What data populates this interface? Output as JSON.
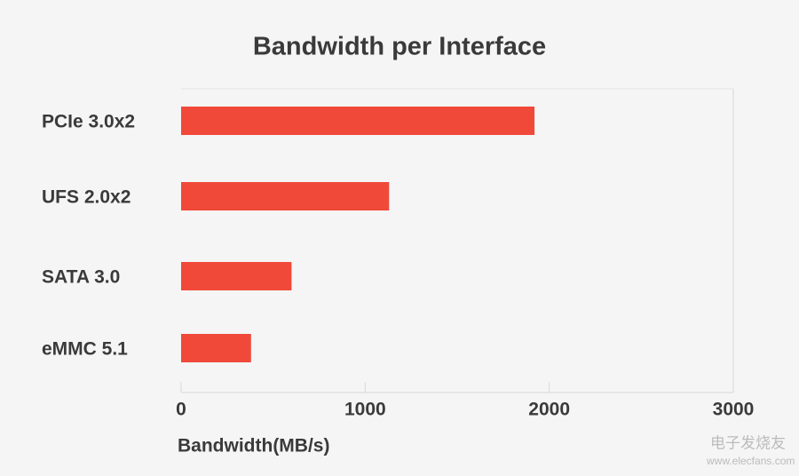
{
  "chart_data": {
    "type": "bar",
    "orientation": "horizontal",
    "title": "Bandwidth per Interface",
    "categories": [
      "PCIe 3.0x2",
      "UFS 2.0x2",
      "SATA 3.0",
      "eMMC 5.1"
    ],
    "values": [
      1920,
      1130,
      600,
      380
    ],
    "color": "#f0493a",
    "xlabel": "Bandwidth(MB/s)",
    "xlim": [
      0,
      3000
    ],
    "xticks": [
      0,
      1000,
      2000,
      3000
    ],
    "grid": true,
    "watermark": [
      "电子发烧友",
      "www.elecfans.com"
    ]
  }
}
